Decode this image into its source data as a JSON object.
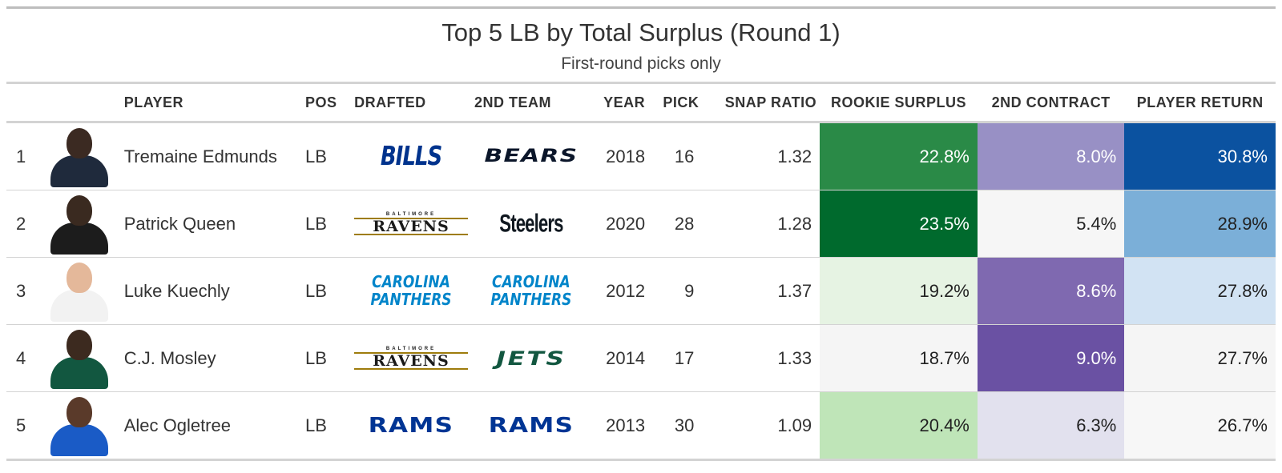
{
  "title": "Top 5 LB by Total Surplus (Round 1)",
  "subtitle": "First-round picks only",
  "columns": {
    "player": "PLAYER",
    "pos": "POS",
    "drafted": "DRAFTED",
    "second_team": "2ND TEAM",
    "year": "YEAR",
    "pick": "PICK",
    "snap_ratio": "SNAP RATIO",
    "rookie_surplus": "ROOKIE SURPLUS",
    "second_contract": "2ND CONTRACT",
    "player_return": "PLAYER RETURN"
  },
  "rows": [
    {
      "rank": "1",
      "player": "Tremaine Edmunds",
      "pos": "LB",
      "drafted_logo": "bills",
      "drafted_text": "BILLS",
      "second_logo": "bears",
      "second_text": "BEARS",
      "year": "2018",
      "pick": "16",
      "snap_ratio": "1.32",
      "rookie_surplus": "22.8%",
      "second_contract": "8.0%",
      "player_return": "30.8%",
      "rookie_color": "#2a8a47",
      "rookie_text_color": "#ffffff",
      "contract_color": "#9890c5",
      "contract_text_color": "#ffffff",
      "return_color": "#0b52a0",
      "return_text_color": "#ffffff",
      "skin": "#3b2a22",
      "jersey": "#1f2a3c"
    },
    {
      "rank": "2",
      "player": "Patrick Queen",
      "pos": "LB",
      "drafted_logo": "ravens",
      "drafted_text": "RAVENS",
      "drafted_small": "BALTIMORE",
      "second_logo": "steelers",
      "second_text": "Steelers",
      "year": "2020",
      "pick": "28",
      "snap_ratio": "1.28",
      "rookie_surplus": "23.5%",
      "second_contract": "5.4%",
      "player_return": "28.9%",
      "rookie_color": "#006a2d",
      "rookie_text_color": "#ffffff",
      "contract_color": "#f6f6f6",
      "contract_text_color": "#222222",
      "return_color": "#7bafd8",
      "return_text_color": "#222222",
      "skin": "#3a2a20",
      "jersey": "#1c1c1c"
    },
    {
      "rank": "3",
      "player": "Luke Kuechly",
      "pos": "LB",
      "drafted_logo": "panthers",
      "drafted_text": "CAROLINA PANTHERS",
      "second_logo": "panthers",
      "second_text": "CAROLINA PANTHERS",
      "year": "2012",
      "pick": "9",
      "snap_ratio": "1.37",
      "rookie_surplus": "19.2%",
      "second_contract": "8.6%",
      "player_return": "27.8%",
      "rookie_color": "#e6f3e3",
      "rookie_text_color": "#222222",
      "contract_color": "#7f69b0",
      "contract_text_color": "#ffffff",
      "return_color": "#d2e3f3",
      "return_text_color": "#222222",
      "skin": "#e4b89a",
      "jersey": "#f2f2f2"
    },
    {
      "rank": "4",
      "player": "C.J. Mosley",
      "pos": "LB",
      "drafted_logo": "ravens",
      "drafted_text": "RAVENS",
      "drafted_small": "BALTIMORE",
      "second_logo": "jets",
      "second_text": "JETS",
      "year": "2014",
      "pick": "17",
      "snap_ratio": "1.33",
      "rookie_surplus": "18.7%",
      "second_contract": "9.0%",
      "player_return": "27.7%",
      "rookie_color": "#f5f5f5",
      "rookie_text_color": "#222222",
      "contract_color": "#6a51a3",
      "contract_text_color": "#ffffff",
      "return_color": "#f5f5f5",
      "return_text_color": "#222222",
      "skin": "#3c2a1f",
      "jersey": "#125740"
    },
    {
      "rank": "5",
      "player": "Alec Ogletree",
      "pos": "LB",
      "drafted_logo": "rams",
      "drafted_text": "RAMS",
      "second_logo": "rams",
      "second_text": "RAMS",
      "year": "2013",
      "pick": "30",
      "snap_ratio": "1.09",
      "rookie_surplus": "20.4%",
      "second_contract": "6.3%",
      "player_return": "26.7%",
      "rookie_color": "#bfe5b8",
      "rookie_text_color": "#222222",
      "contract_color": "#e2e1ee",
      "contract_text_color": "#222222",
      "return_color": "#f7f7f7",
      "return_text_color": "#222222",
      "skin": "#5a3a2a",
      "jersey": "#1a5bc6"
    }
  ]
}
